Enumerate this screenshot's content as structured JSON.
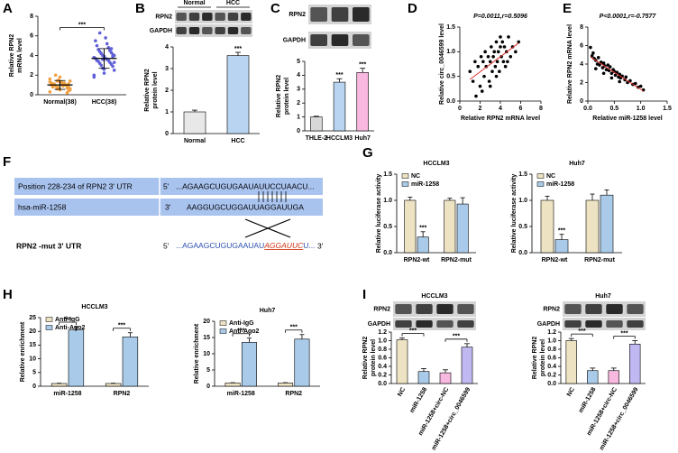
{
  "panel_labels": [
    "A",
    "B",
    "C",
    "D",
    "E",
    "F",
    "G",
    "H",
    "I"
  ],
  "sequence": {
    "wt_label": "Position 228-234 of RPN2 3' UTR",
    "wt_5": "5'",
    "wt_seq": "...AGAAGCUGUGAAUAUUCCUAACU...",
    "mir_label": "hsa-miR-1258",
    "mir_3": "3'",
    "mir_seq": "AAGGUGCUGGAUUAGGAUUGA",
    "mut_label": "RPN2 -mut   3' UTR",
    "mut_5": "5'",
    "mut_seq_a": "...AGAAGCUGUGAAUAU",
    "mut_seq_b": "AGGAUUC",
    "mut_seq_c": "U...",
    "mut_3": "3'"
  },
  "chart_data": [
    {
      "type": "strip",
      "categories": [
        "Normal(38)",
        "HCC(38)"
      ],
      "colors": [
        "#f0a040",
        "#6060d8"
      ],
      "points": [
        [
          0.3,
          0.5,
          0.6,
          0.7,
          0.8,
          0.8,
          0.9,
          0.9,
          1.0,
          1.0,
          1.0,
          1.1,
          1.1,
          1.2,
          1.2,
          1.3,
          1.3,
          1.4,
          1.5,
          0.4,
          0.6,
          0.7,
          0.9,
          1.0,
          1.1,
          1.2,
          0.8,
          0.9,
          1.0,
          1.3,
          1.6,
          1.8,
          0.5,
          0.7,
          1.1,
          1.4,
          0.2,
          2.0
        ],
        [
          1.8,
          2.2,
          2.5,
          2.7,
          2.9,
          3.0,
          3.1,
          3.2,
          3.3,
          3.4,
          3.5,
          3.5,
          3.6,
          3.7,
          3.7,
          3.8,
          3.9,
          4.0,
          4.0,
          4.1,
          4.2,
          4.3,
          4.4,
          4.5,
          4.6,
          4.8,
          5.0,
          5.2,
          5.5,
          5.8,
          2.0,
          2.6,
          3.3,
          3.6,
          3.9,
          4.2,
          4.7,
          6.3
        ]
      ],
      "means": [
        1.0,
        3.7
      ],
      "errors": [
        0.45,
        1.0
      ],
      "ylabel": [
        "Relative RPN2",
        "mRNA level"
      ],
      "ylim": [
        0,
        8
      ],
      "yticks": [
        0,
        2,
        4,
        6,
        8
      ],
      "annotations": [
        "***"
      ],
      "bracket": true
    },
    {
      "type": "bar",
      "blot_groups": [
        "Normal",
        "HCC"
      ],
      "blot_rows": [
        "RPN2",
        "GAPDH"
      ],
      "categories": [
        "Normal",
        "HCC"
      ],
      "values": [
        1.0,
        3.6
      ],
      "errors": [
        0.08,
        0.15
      ],
      "colors": [
        "#e8e8e8",
        "#b8d4f0"
      ],
      "ylabel": [
        "Relative RPN2",
        "protein level"
      ],
      "ylim": [
        0,
        4
      ],
      "yticks": [
        0,
        1,
        2,
        3,
        4
      ],
      "annotations": [
        null,
        "***"
      ],
      "bracket": false
    },
    {
      "type": "bar",
      "blot_rows": [
        "RPN2",
        "GAPDH"
      ],
      "categories": [
        "THLE-2",
        "HCCLM3",
        "Huh7"
      ],
      "values": [
        1.0,
        3.5,
        4.2
      ],
      "errors": [
        0.05,
        0.25,
        0.3
      ],
      "colors": [
        "#d8d8d8",
        "#b8d4f0",
        "#f8b8e0"
      ],
      "ylabel": [
        "Relative RPN2",
        "protein level"
      ],
      "ylim": [
        0,
        5
      ],
      "yticks": [
        0,
        1,
        2,
        3,
        4,
        5
      ],
      "annotations": [
        null,
        "***",
        "***"
      ],
      "bracket": false
    },
    {
      "type": "scatter",
      "title": "P=0.0011,r=0.5096",
      "xlabel": "Relative RPN2 mRNA level",
      "ylabel": [
        "Relative circ_0046599 level"
      ],
      "x": [
        1.0,
        1.3,
        1.5,
        1.8,
        2.0,
        2.1,
        2.3,
        2.4,
        2.5,
        2.6,
        2.8,
        2.9,
        3.0,
        3.1,
        3.2,
        3.3,
        3.4,
        3.5,
        3.6,
        3.7,
        3.8,
        3.9,
        4.0,
        4.1,
        4.2,
        4.3,
        4.4,
        4.5,
        4.6,
        4.8,
        5.0,
        5.2,
        5.5,
        5.8,
        2.2,
        3.0,
        3.6,
        4.0,
        4.7,
        1.6
      ],
      "y": [
        0.6,
        0.4,
        0.8,
        0.7,
        0.3,
        0.9,
        0.8,
        0.5,
        1.0,
        0.7,
        0.9,
        0.4,
        0.8,
        1.1,
        0.6,
        0.9,
        1.0,
        0.7,
        1.2,
        0.8,
        1.0,
        0.6,
        1.1,
        0.9,
        1.2,
        0.8,
        1.1,
        0.7,
        1.0,
        1.3,
        0.9,
        1.1,
        1.0,
        1.2,
        0.2,
        0.3,
        0.5,
        1.3,
        0.8,
        0.1
      ],
      "xlim": [
        0,
        8
      ],
      "xticks": [
        0,
        2,
        4,
        6,
        8
      ],
      "ylim": [
        0,
        1.5
      ],
      "yticks": [
        {
          "value": 0,
          "label": "0.0"
        },
        0.5,
        {
          "value": 1,
          "label": "1.0"
        },
        1.5
      ],
      "color": "#000000",
      "fit_color": "#e03030"
    },
    {
      "type": "scatter",
      "title": "P<0.0001,r=-0.7577",
      "xlabel": "Relative miR-1258 level",
      "ylabel": [
        "Relative RPN2 mRNA level"
      ],
      "x": [
        0.05,
        0.08,
        0.1,
        0.12,
        0.15,
        0.18,
        0.2,
        0.22,
        0.25,
        0.28,
        0.3,
        0.32,
        0.35,
        0.38,
        0.4,
        0.42,
        0.45,
        0.48,
        0.5,
        0.52,
        0.55,
        0.58,
        0.6,
        0.62,
        0.65,
        0.7,
        0.72,
        0.75,
        0.8,
        0.85,
        0.9,
        0.95,
        1.0,
        1.05,
        0.15,
        0.3,
        0.45,
        0.6
      ],
      "y": [
        5.8,
        4.9,
        5.2,
        4.6,
        4.4,
        4.0,
        4.7,
        3.9,
        4.2,
        3.6,
        4.1,
        3.8,
        3.4,
        3.9,
        3.3,
        3.7,
        3.0,
        3.4,
        3.2,
        2.8,
        3.1,
        2.6,
        2.9,
        2.5,
        2.7,
        2.3,
        2.6,
        2.0,
        2.2,
        1.8,
        1.9,
        1.5,
        1.6,
        1.2,
        3.5,
        3.0,
        2.5,
        2.1
      ],
      "xlim": [
        0,
        1.5
      ],
      "xticks": [
        {
          "value": 0,
          "label": "0.0"
        },
        0.5,
        {
          "value": 1,
          "label": "1.0"
        },
        1.5
      ],
      "ylim": [
        0,
        8
      ],
      "yticks": [
        0,
        2,
        4,
        6,
        8
      ],
      "color": "#000000",
      "fit_color": "#e03030"
    },
    {
      "type": "bar",
      "title": "HCCLM3",
      "categories": [
        "RPN2-wt",
        "RPN2-mut"
      ],
      "series": [
        {
          "name": "NC",
          "color": "#ede3c3",
          "values": [
            1.0,
            1.0
          ],
          "errors": [
            0.06,
            0.04
          ]
        },
        {
          "name": "miR-1258",
          "color": "#a9cbe9",
          "values": [
            0.3,
            0.93
          ],
          "errors": [
            0.1,
            0.12
          ]
        }
      ],
      "legend": "top-left",
      "ylabel": [
        "Relative luciferase activity"
      ],
      "ylim": [
        0,
        1.5
      ],
      "yticks": [
        {
          "value": 0,
          "label": "0.0"
        },
        0.5,
        {
          "value": 1,
          "label": "1.0"
        },
        1.5
      ],
      "annotations": [
        "***",
        null
      ],
      "bracket": false
    },
    {
      "type": "bar",
      "title": "Huh7",
      "categories": [
        "RPN2-wt",
        "RPN2-mut"
      ],
      "series": [
        {
          "name": "NC",
          "color": "#ede3c3",
          "values": [
            1.0,
            1.0
          ],
          "errors": [
            0.08,
            0.12
          ]
        },
        {
          "name": "miR-1258",
          "color": "#a9cbe9",
          "values": [
            0.25,
            1.1
          ],
          "errors": [
            0.1,
            0.1
          ]
        }
      ],
      "legend": "top-left",
      "ylabel": [
        "Relative luciferase activity"
      ],
      "ylim": [
        0,
        1.5
      ],
      "yticks": [
        {
          "value": 0,
          "label": "0.0"
        },
        0.5,
        {
          "value": 1,
          "label": "1.0"
        },
        1.5
      ],
      "annotations": [
        "***",
        null
      ],
      "bracket": false
    },
    {
      "type": "bar",
      "title": "HCCLM3",
      "categories": [
        "miR-1258",
        "RPN2"
      ],
      "series": [
        {
          "name": "Anti-IgG",
          "color": "#ede3c3",
          "values": [
            1.0,
            1.0
          ],
          "errors": [
            0.1,
            0.1
          ]
        },
        {
          "name": "Anti-Ago2",
          "color": "#a9cbe9",
          "values": [
            20.5,
            18
          ],
          "errors": [
            1.2,
            1.5
          ]
        }
      ],
      "legend": "top-left",
      "ylabel": [
        "Relative enrichment"
      ],
      "ylim": [
        0,
        25
      ],
      "yticks": [
        0,
        5,
        10,
        15,
        20,
        25
      ],
      "annotations": [
        "***",
        "***"
      ],
      "bracket": true
    },
    {
      "type": "bar",
      "title": "Huh7",
      "categories": [
        "miR-1258",
        "RPN2"
      ],
      "series": [
        {
          "name": "Anti-IgG",
          "color": "#ede3c3",
          "values": [
            1.0,
            1.0
          ],
          "errors": [
            0.1,
            0.1
          ]
        },
        {
          "name": "Anti-Ago2",
          "color": "#a9cbe9",
          "values": [
            13.5,
            14.5
          ],
          "errors": [
            1.3,
            1.4
          ]
        }
      ],
      "legend": "top-left",
      "ylabel": [
        "Relative enrichment"
      ],
      "ylim": [
        0,
        20
      ],
      "yticks": [
        0,
        5,
        10,
        15,
        20
      ],
      "annotations": [
        "***",
        "***"
      ],
      "bracket": true
    },
    {
      "type": "bar",
      "title": "HCCLM3",
      "blot_rows": [
        "RPN2",
        "GAPDH"
      ],
      "categories": [
        "NC",
        "miR-1258",
        "miR-1258+circ-NC",
        "miR-1258+circ_0046599"
      ],
      "values": [
        1.02,
        0.28,
        0.25,
        0.85
      ],
      "errors": [
        0.04,
        0.07,
        0.07,
        0.08
      ],
      "colors": [
        "#ede3c3",
        "#a9cbe9",
        "#f8b8e0",
        "#c0b8f0"
      ],
      "ylabel": [
        "Relative RPN2",
        "protein level"
      ],
      "ylim": [
        0,
        1.2
      ],
      "yticks": [
        {
          "value": 0,
          "label": "0.0"
        },
        0.2,
        0.4,
        0.6,
        0.8,
        {
          "value": 1,
          "label": "1.0"
        },
        1.2
      ],
      "annotations": [
        "***",
        "***"
      ],
      "bracket": true
    },
    {
      "type": "bar",
      "title": "Huh7",
      "blot_rows": [
        "RPN2",
        "GAPDH"
      ],
      "categories": [
        "NC",
        "miR-1258",
        "miR-1258+circ-NC",
        "miR-1258+circ_0046599"
      ],
      "values": [
        1.0,
        0.3,
        0.3,
        0.92
      ],
      "errors": [
        0.05,
        0.06,
        0.06,
        0.08
      ],
      "colors": [
        "#ede3c3",
        "#a9cbe9",
        "#f8b8e0",
        "#c0b8f0"
      ],
      "ylabel": [
        "Relative RPN2",
        "protein level"
      ],
      "ylim": [
        0,
        1.2
      ],
      "yticks": [
        {
          "value": 0,
          "label": "0.0"
        },
        0.2,
        0.4,
        0.6,
        0.8,
        {
          "value": 1,
          "label": "1.0"
        },
        1.2
      ],
      "annotations": [
        "***",
        "***"
      ],
      "bracket": true
    }
  ]
}
